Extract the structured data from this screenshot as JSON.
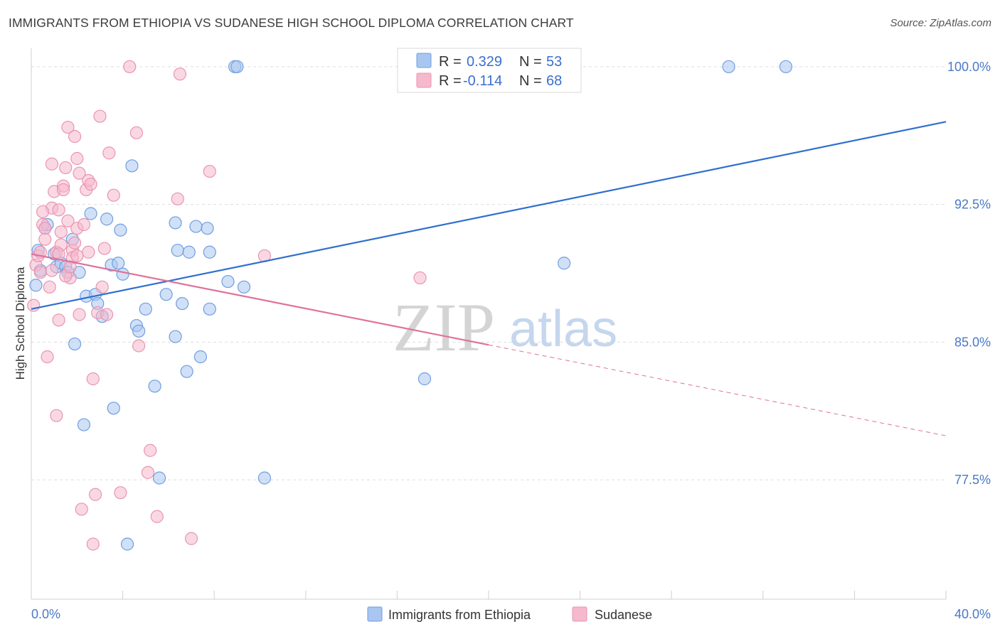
{
  "header": {
    "title": "IMMIGRANTS FROM ETHIOPIA VS SUDANESE HIGH SCHOOL DIPLOMA CORRELATION CHART",
    "source": "Source: ZipAtlas.com"
  },
  "watermark": {
    "zip": "ZIP",
    "atlas": "atlas"
  },
  "colors": {
    "blue_fill": "#a9c6f0",
    "blue_stroke": "#6f9ee0",
    "blue_line": "#2f6fcf",
    "pink_fill": "#f6b8cc",
    "pink_stroke": "#e895b1",
    "pink_line": "#e0709a",
    "axis_text": "#4a78c8",
    "grid": "#dddddd"
  },
  "legend": {
    "r_label": "R =",
    "n_label": "N =",
    "rows": [
      {
        "r": "0.329",
        "n": "53",
        "color": "blue"
      },
      {
        "r": "-0.114",
        "n": "68",
        "color": "pink"
      }
    ]
  },
  "bottom_legend": [
    "Immigrants from Ethiopia",
    "Sudanese"
  ],
  "chart_data": {
    "type": "scatter",
    "title": "IMMIGRANTS FROM ETHIOPIA VS SUDANESE HIGH SCHOOL DIPLOMA CORRELATION CHART",
    "xlabel": "",
    "ylabel": "High School Diploma",
    "xlim": [
      0,
      40
    ],
    "ylim": [
      71,
      101
    ],
    "x_tick_labels": [
      "0.0%",
      "40.0%"
    ],
    "y_ticks": [
      77.5,
      85.0,
      92.5,
      100.0
    ],
    "y_tick_labels": [
      "77.5%",
      "85.0%",
      "92.5%",
      "100.0%"
    ],
    "grid": true,
    "series": [
      {
        "name": "Immigrants from Ethiopia",
        "color": "blue",
        "trend": {
          "x": [
            0,
            40
          ],
          "y": [
            86.8,
            97.0
          ],
          "dashed_from": null
        },
        "points": [
          [
            0.2,
            88.1
          ],
          [
            0.3,
            90.0
          ],
          [
            0.4,
            88.9
          ],
          [
            0.6,
            91.2
          ],
          [
            0.7,
            91.4
          ],
          [
            1.0,
            89.8
          ],
          [
            1.1,
            89.1
          ],
          [
            1.3,
            89.3
          ],
          [
            1.5,
            89.1
          ],
          [
            1.6,
            88.8
          ],
          [
            1.8,
            90.6
          ],
          [
            1.9,
            84.9
          ],
          [
            2.1,
            88.8
          ],
          [
            2.3,
            80.5
          ],
          [
            2.4,
            87.5
          ],
          [
            2.6,
            92.0
          ],
          [
            2.8,
            87.6
          ],
          [
            2.9,
            87.1
          ],
          [
            3.1,
            86.4
          ],
          [
            3.3,
            91.7
          ],
          [
            3.5,
            89.2
          ],
          [
            3.6,
            81.4
          ],
          [
            3.8,
            89.3
          ],
          [
            3.9,
            91.1
          ],
          [
            4.0,
            88.7
          ],
          [
            4.2,
            74.0
          ],
          [
            4.4,
            94.6
          ],
          [
            4.6,
            85.9
          ],
          [
            4.7,
            85.6
          ],
          [
            5.0,
            86.8
          ],
          [
            5.4,
            82.6
          ],
          [
            5.6,
            77.6
          ],
          [
            5.9,
            87.6
          ],
          [
            6.3,
            91.5
          ],
          [
            6.3,
            85.3
          ],
          [
            6.4,
            90.0
          ],
          [
            6.6,
            87.1
          ],
          [
            6.8,
            83.4
          ],
          [
            6.9,
            89.9
          ],
          [
            7.2,
            91.3
          ],
          [
            7.4,
            84.2
          ],
          [
            7.7,
            91.2
          ],
          [
            7.8,
            86.8
          ],
          [
            7.8,
            89.9
          ],
          [
            8.6,
            88.3
          ],
          [
            8.9,
            100.0
          ],
          [
            9.0,
            100.0
          ],
          [
            9.3,
            88.0
          ],
          [
            10.2,
            77.6
          ],
          [
            17.2,
            83.0
          ],
          [
            23.3,
            89.3
          ],
          [
            30.5,
            100.0
          ],
          [
            33.0,
            100.0
          ]
        ]
      },
      {
        "name": "Sudanese",
        "color": "pink",
        "trend": {
          "x": [
            0,
            40
          ],
          "y": [
            89.8,
            79.9
          ],
          "dashed_from": 20
        },
        "points": [
          [
            0.1,
            87.0
          ],
          [
            0.2,
            89.2
          ],
          [
            0.3,
            89.7
          ],
          [
            0.4,
            88.8
          ],
          [
            0.5,
            91.4
          ],
          [
            0.6,
            91.2
          ],
          [
            0.7,
            84.2
          ],
          [
            0.8,
            88.0
          ],
          [
            0.9,
            92.3
          ],
          [
            0.9,
            94.7
          ],
          [
            1.0,
            93.2
          ],
          [
            1.1,
            81.0
          ],
          [
            1.1,
            89.9
          ],
          [
            1.2,
            92.2
          ],
          [
            1.2,
            86.2
          ],
          [
            1.3,
            90.3
          ],
          [
            1.4,
            93.5
          ],
          [
            1.4,
            93.3
          ],
          [
            1.5,
            94.5
          ],
          [
            1.6,
            91.6
          ],
          [
            1.6,
            96.7
          ],
          [
            1.7,
            88.5
          ],
          [
            1.8,
            90.0
          ],
          [
            1.8,
            89.6
          ],
          [
            1.9,
            96.2
          ],
          [
            1.9,
            90.4
          ],
          [
            2.0,
            95.0
          ],
          [
            2.0,
            91.2
          ],
          [
            2.1,
            94.2
          ],
          [
            2.1,
            86.5
          ],
          [
            2.2,
            75.9
          ],
          [
            2.3,
            91.4
          ],
          [
            2.4,
            93.3
          ],
          [
            2.5,
            93.8
          ],
          [
            2.6,
            93.6
          ],
          [
            2.7,
            74.0
          ],
          [
            2.7,
            83.0
          ],
          [
            2.8,
            76.7
          ],
          [
            2.9,
            86.6
          ],
          [
            3.0,
            97.3
          ],
          [
            3.2,
            90.1
          ],
          [
            3.3,
            86.5
          ],
          [
            3.4,
            95.3
          ],
          [
            3.6,
            93.0
          ],
          [
            3.9,
            76.8
          ],
          [
            4.3,
            100.0
          ],
          [
            4.6,
            96.4
          ],
          [
            4.7,
            84.8
          ],
          [
            5.1,
            77.9
          ],
          [
            5.2,
            79.1
          ],
          [
            5.5,
            75.5
          ],
          [
            6.4,
            92.8
          ],
          [
            6.5,
            99.6
          ],
          [
            7.0,
            74.3
          ],
          [
            7.8,
            94.3
          ],
          [
            10.2,
            89.7
          ],
          [
            17.0,
            88.5
          ],
          [
            0.4,
            89.9
          ],
          [
            0.6,
            90.6
          ],
          [
            0.9,
            88.9
          ],
          [
            1.2,
            89.8
          ],
          [
            1.5,
            88.6
          ],
          [
            1.7,
            89.1
          ],
          [
            2.0,
            89.7
          ],
          [
            2.5,
            89.9
          ],
          [
            3.1,
            88.0
          ],
          [
            0.5,
            92.1
          ],
          [
            1.3,
            91.0
          ]
        ]
      }
    ]
  }
}
